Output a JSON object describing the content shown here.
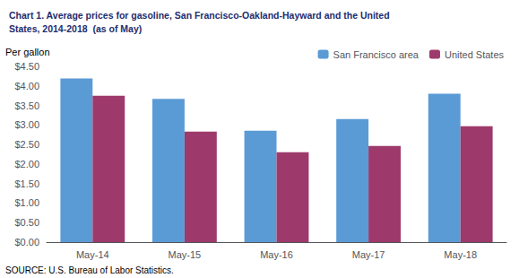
{
  "chart_data": {
    "type": "bar",
    "title": "Chart 1. Average prices for gasoline, San Francisco-Oakland-Hayward and the United\nStates, 2014-2018  (as of May)",
    "ylabel": "Per gallon",
    "annotations": [
      "SOURCE: U.S. Bureau of Labor Statistics."
    ],
    "categories": [
      "May-14",
      "May-15",
      "May-16",
      "May-17",
      "May-18"
    ],
    "series": [
      {
        "name": "San Francisco area",
        "color": "#5B9BD5",
        "values": [
          4.19,
          3.67,
          2.85,
          3.15,
          3.8
        ]
      },
      {
        "name": "United States",
        "color": "#9E3A6B",
        "values": [
          3.75,
          2.83,
          2.3,
          2.46,
          2.97
        ]
      }
    ],
    "ylim": [
      0,
      4.5
    ],
    "yticks": [
      {
        "value": 0.0,
        "label": "$0.00"
      },
      {
        "value": 0.5,
        "label": "$0.50"
      },
      {
        "value": 1.0,
        "label": "$1.00"
      },
      {
        "value": 1.5,
        "label": "$1.50"
      },
      {
        "value": 2.0,
        "label": "$2.00"
      },
      {
        "value": 2.5,
        "label": "$2.50"
      },
      {
        "value": 3.0,
        "label": "$3.00"
      },
      {
        "value": 3.5,
        "label": "$3.50"
      },
      {
        "value": 4.0,
        "label": "$4.00"
      },
      {
        "value": 4.5,
        "label": "$4.50"
      }
    ],
    "legend": "upper right",
    "grid": false
  }
}
